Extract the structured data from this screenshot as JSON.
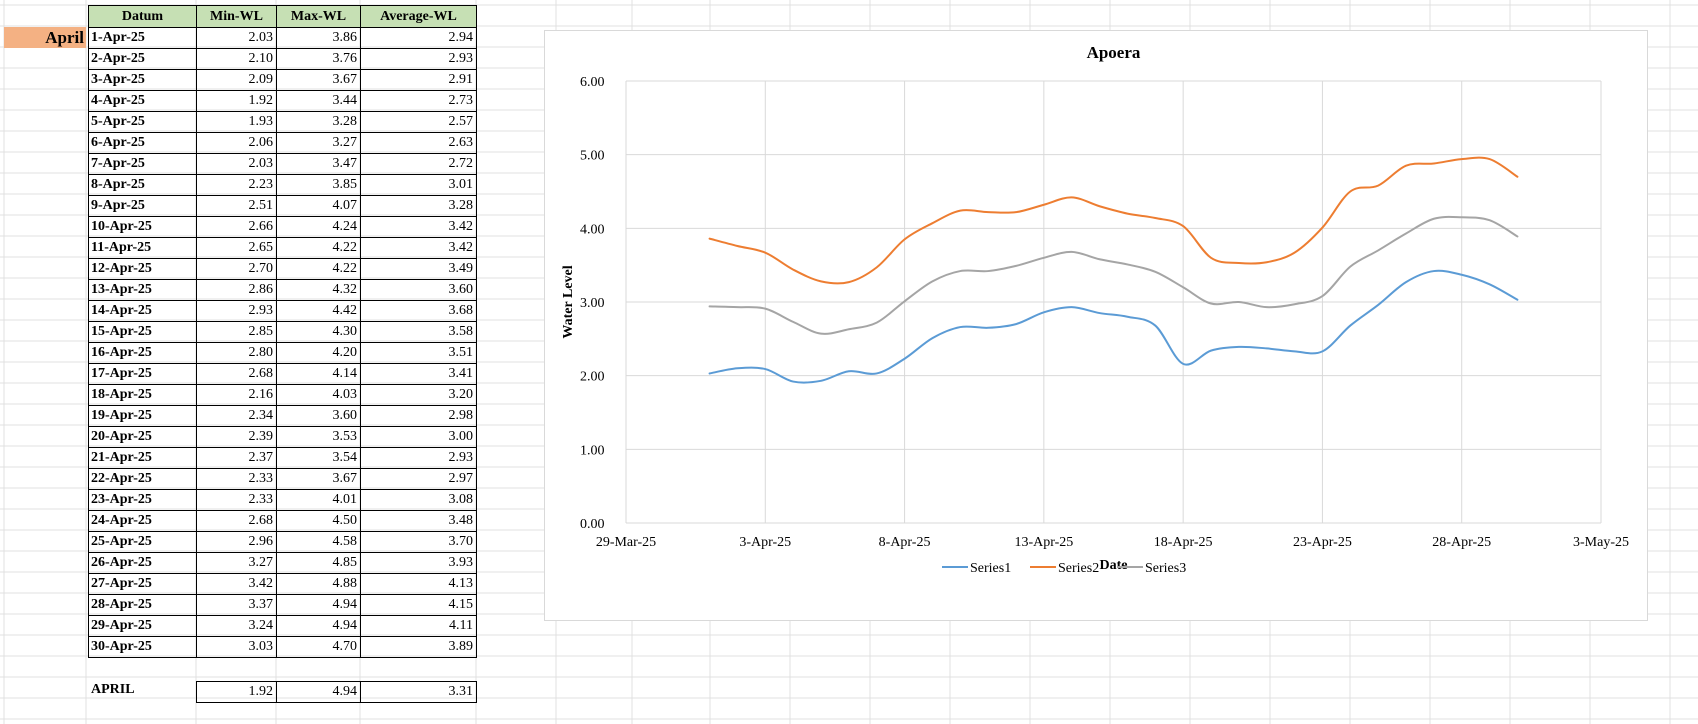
{
  "sheet": {
    "month_label": "April",
    "headers": [
      "Datum",
      "Min-WL",
      "Max-WL",
      "Average-WL"
    ],
    "rows": [
      [
        "1-Apr-25",
        "2.03",
        "3.86",
        "2.94"
      ],
      [
        "2-Apr-25",
        "2.10",
        "3.76",
        "2.93"
      ],
      [
        "3-Apr-25",
        "2.09",
        "3.67",
        "2.91"
      ],
      [
        "4-Apr-25",
        "1.92",
        "3.44",
        "2.73"
      ],
      [
        "5-Apr-25",
        "1.93",
        "3.28",
        "2.57"
      ],
      [
        "6-Apr-25",
        "2.06",
        "3.27",
        "2.63"
      ],
      [
        "7-Apr-25",
        "2.03",
        "3.47",
        "2.72"
      ],
      [
        "8-Apr-25",
        "2.23",
        "3.85",
        "3.01"
      ],
      [
        "9-Apr-25",
        "2.51",
        "4.07",
        "3.28"
      ],
      [
        "10-Apr-25",
        "2.66",
        "4.24",
        "3.42"
      ],
      [
        "11-Apr-25",
        "2.65",
        "4.22",
        "3.42"
      ],
      [
        "12-Apr-25",
        "2.70",
        "4.22",
        "3.49"
      ],
      [
        "13-Apr-25",
        "2.86",
        "4.32",
        "3.60"
      ],
      [
        "14-Apr-25",
        "2.93",
        "4.42",
        "3.68"
      ],
      [
        "15-Apr-25",
        "2.85",
        "4.30",
        "3.58"
      ],
      [
        "16-Apr-25",
        "2.80",
        "4.20",
        "3.51"
      ],
      [
        "17-Apr-25",
        "2.68",
        "4.14",
        "3.41"
      ],
      [
        "18-Apr-25",
        "2.16",
        "4.03",
        "3.20"
      ],
      [
        "19-Apr-25",
        "2.34",
        "3.60",
        "2.98"
      ],
      [
        "20-Apr-25",
        "2.39",
        "3.53",
        "3.00"
      ],
      [
        "21-Apr-25",
        "2.37",
        "3.54",
        "2.93"
      ],
      [
        "22-Apr-25",
        "2.33",
        "3.67",
        "2.97"
      ],
      [
        "23-Apr-25",
        "2.33",
        "4.01",
        "3.08"
      ],
      [
        "24-Apr-25",
        "2.68",
        "4.50",
        "3.48"
      ],
      [
        "25-Apr-25",
        "2.96",
        "4.58",
        "3.70"
      ],
      [
        "26-Apr-25",
        "3.27",
        "4.85",
        "3.93"
      ],
      [
        "27-Apr-25",
        "3.42",
        "4.88",
        "4.13"
      ],
      [
        "28-Apr-25",
        "3.37",
        "4.94",
        "4.15"
      ],
      [
        "29-Apr-25",
        "3.24",
        "4.94",
        "4.11"
      ],
      [
        "30-Apr-25",
        "3.03",
        "4.70",
        "3.89"
      ]
    ],
    "summary": {
      "label": "APRIL",
      "min": "1.92",
      "max": "4.94",
      "avg": "3.31"
    }
  },
  "chart_data": {
    "type": "line",
    "title": "Apoera",
    "xlabel": "Date",
    "ylabel": "Water Level",
    "x": [
      "1-Apr-25",
      "2-Apr-25",
      "3-Apr-25",
      "4-Apr-25",
      "5-Apr-25",
      "6-Apr-25",
      "7-Apr-25",
      "8-Apr-25",
      "9-Apr-25",
      "10-Apr-25",
      "11-Apr-25",
      "12-Apr-25",
      "13-Apr-25",
      "14-Apr-25",
      "15-Apr-25",
      "16-Apr-25",
      "17-Apr-25",
      "18-Apr-25",
      "19-Apr-25",
      "20-Apr-25",
      "21-Apr-25",
      "22-Apr-25",
      "23-Apr-25",
      "24-Apr-25",
      "25-Apr-25",
      "26-Apr-25",
      "27-Apr-25",
      "28-Apr-25",
      "29-Apr-25",
      "30-Apr-25"
    ],
    "xticks": [
      "29-Mar-25",
      "3-Apr-25",
      "8-Apr-25",
      "13-Apr-25",
      "18-Apr-25",
      "23-Apr-25",
      "28-Apr-25",
      "3-May-25"
    ],
    "xlim": [
      "29-Mar-25",
      "3-May-25"
    ],
    "yticks": [
      "0.00",
      "1.00",
      "2.00",
      "3.00",
      "4.00",
      "5.00",
      "6.00"
    ],
    "ylim": [
      0,
      6
    ],
    "grid": true,
    "legend_position": "bottom",
    "series": [
      {
        "name": "Series1",
        "color": "#5b9bd5",
        "values": [
          2.03,
          2.1,
          2.09,
          1.92,
          1.93,
          2.06,
          2.03,
          2.23,
          2.51,
          2.66,
          2.65,
          2.7,
          2.86,
          2.93,
          2.85,
          2.8,
          2.68,
          2.16,
          2.34,
          2.39,
          2.37,
          2.33,
          2.33,
          2.68,
          2.96,
          3.27,
          3.42,
          3.37,
          3.24,
          3.03
        ]
      },
      {
        "name": "Series2",
        "color": "#ed7d31",
        "values": [
          3.86,
          3.76,
          3.67,
          3.44,
          3.28,
          3.27,
          3.47,
          3.85,
          4.07,
          4.24,
          4.22,
          4.22,
          4.32,
          4.42,
          4.3,
          4.2,
          4.14,
          4.03,
          3.6,
          3.53,
          3.54,
          3.67,
          4.01,
          4.5,
          4.58,
          4.85,
          4.88,
          4.94,
          4.94,
          4.7
        ]
      },
      {
        "name": "Series3",
        "color": "#a5a5a5",
        "values": [
          2.94,
          2.93,
          2.91,
          2.73,
          2.57,
          2.63,
          2.72,
          3.01,
          3.28,
          3.42,
          3.42,
          3.49,
          3.6,
          3.68,
          3.58,
          3.51,
          3.41,
          3.2,
          2.98,
          3.0,
          2.93,
          2.97,
          3.08,
          3.48,
          3.7,
          3.93,
          4.13,
          4.15,
          4.11,
          3.89
        ]
      }
    ]
  }
}
